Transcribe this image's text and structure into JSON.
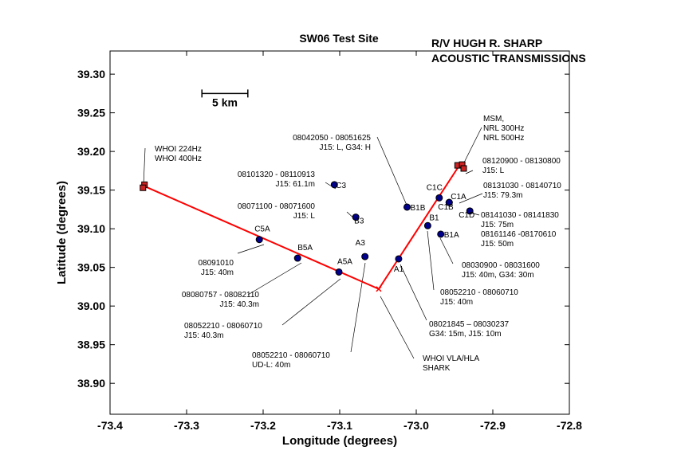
{
  "chart_data": {
    "type": "scatter",
    "title": "SW06 Test Site",
    "subtitle": [
      "R/V HUGH R. SHARP",
      "ACOUSTIC TRANSMISSIONS"
    ],
    "xlabel": "Longitude (degrees)",
    "ylabel": "Latitude (degrees)",
    "xlim": [
      -73.4,
      -72.8
    ],
    "ylim": [
      38.86,
      39.33
    ],
    "xticks": [
      -73.4,
      -73.3,
      -73.2,
      -73.1,
      -73.0,
      -72.9,
      -72.8
    ],
    "xtick_labels": [
      "-73.4",
      "-73.3",
      "-73.2",
      "-73.1",
      "-73.0",
      "-72.9",
      "-72.8"
    ],
    "yticks": [
      38.9,
      38.95,
      39.0,
      39.05,
      39.1,
      39.15,
      39.2,
      39.25,
      39.3
    ],
    "ytick_labels": [
      "38.90",
      "38.95",
      "39.00",
      "39.05",
      "39.10",
      "39.15",
      "39.20",
      "39.25",
      "39.30"
    ],
    "grid": false,
    "scale_bar": {
      "label": "5 km",
      "x1": -73.28,
      "x2": -73.22,
      "y": 39.275
    },
    "track": {
      "color": "#ff0000",
      "points": [
        {
          "x": -73.355,
          "y": 39.155
        },
        {
          "x": -73.049,
          "y": 39.022
        },
        {
          "x": -72.945,
          "y": 39.18
        }
      ]
    },
    "stations": [
      {
        "name": "C5A",
        "x": -73.205,
        "y": 39.086
      },
      {
        "name": "B5A",
        "x": -73.155,
        "y": 39.062
      },
      {
        "name": "A5A",
        "x": -73.101,
        "y": 39.044
      },
      {
        "name": "A3",
        "x": -73.067,
        "y": 39.064
      },
      {
        "name": "A1",
        "x": -73.023,
        "y": 39.061
      },
      {
        "name": "C3",
        "x": -73.107,
        "y": 39.157
      },
      {
        "name": "B3",
        "x": -73.079,
        "y": 39.115
      },
      {
        "name": "B1B",
        "x": -73.012,
        "y": 39.128
      },
      {
        "name": "C1C",
        "x": -72.97,
        "y": 39.14
      },
      {
        "name": "C1A",
        "x": -72.957,
        "y": 39.134
      },
      {
        "name": "C1B",
        "x": -72.957,
        "y": 39.134
      },
      {
        "name": "C1D",
        "x": -72.93,
        "y": 39.123
      },
      {
        "name": "B1",
        "x": -72.985,
        "y": 39.104
      },
      {
        "name": "B1A",
        "x": -72.968,
        "y": 39.093
      }
    ],
    "source_markers": [
      {
        "x": -73.355,
        "y": 39.157
      },
      {
        "x": -73.357,
        "y": 39.153
      },
      {
        "x": -72.946,
        "y": 39.182
      },
      {
        "x": -72.94,
        "y": 39.183
      },
      {
        "x": -72.938,
        "y": 39.178
      }
    ],
    "annotations": [
      {
        "lines": [
          "WHOI 224Hz",
          "WHOI 400Hz"
        ],
        "color": "#000000"
      },
      {
        "lines": [
          "MSM,",
          "NRL 300Hz",
          "NRL 500Hz"
        ],
        "color": "#000000"
      },
      {
        "lines": [
          "08042050 - 08051625",
          "J15: L, G34: H"
        ],
        "color": "#000000"
      },
      {
        "lines": [
          "08120900 - 08130800",
          "J15: L"
        ],
        "color": "#000000"
      },
      {
        "lines": [
          "08101320 - 08110913",
          "J15: 61.1m"
        ],
        "color": "#000000"
      },
      {
        "lines": [
          "08131030 - 08140710",
          "J15: 79.3m"
        ],
        "color": "#000000"
      },
      {
        "lines": [
          "08071100 - 08071600",
          "J15: L"
        ],
        "color": "#000000"
      },
      {
        "lines": [
          "08141030 - 08141830",
          "J15: 75m",
          "08161146 -08170610",
          "J15: 50m"
        ],
        "color": "#000000"
      },
      {
        "lines": [
          "08091010",
          "J15: 40m"
        ],
        "color": "#000000"
      },
      {
        "lines": [
          "08030900 - 08031600",
          "J15: 40m, G34: 30m"
        ],
        "color": "#000000"
      },
      {
        "lines": [
          "08080757 - 08082110",
          "J15: 40.3m"
        ],
        "color": "#000000"
      },
      {
        "lines": [
          "08052210 - 08060710",
          "J15: 40m"
        ],
        "color": "#000000"
      },
      {
        "lines": [
          "08052210 - 08060710",
          "J15: 40.3m"
        ],
        "color": "#8cb43c"
      },
      {
        "lines": [
          "08021845 – 08030237",
          "G34: 15m, J15: 10m"
        ],
        "color": "#000000"
      },
      {
        "lines": [
          "08052210 - 08060710",
          "UD-L: 40m"
        ],
        "color": "#8cb43c"
      },
      {
        "lines": [
          "WHOI  VLA/HLA",
          "SHARK"
        ],
        "color": "#000000"
      }
    ],
    "colors": {
      "track": "#ff0000",
      "station_fill": "#00008b",
      "source_fill": "#cc2222",
      "annotation_green": "#8cb43c"
    }
  }
}
